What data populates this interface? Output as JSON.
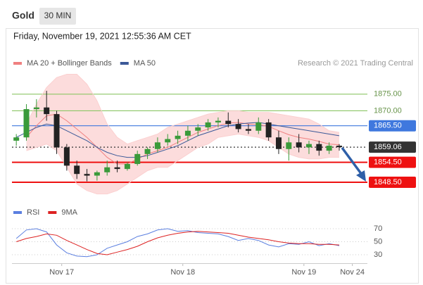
{
  "header": {
    "title": "Gold",
    "interval": "30 MIN"
  },
  "timestamp": "Friday, November 19, 2021 12:55:36 AM CET",
  "credit": "Research © 2021 Trading Central",
  "chart_data": [
    {
      "type": "candlestick",
      "xlim": [
        -0.5,
        35
      ],
      "ylim": [
        1843,
        1883
      ],
      "up_color": "#3a9a3a",
      "down_color": "#222222",
      "open": [
        1861,
        1862,
        1870.5,
        1871,
        1869,
        1859,
        1853.5,
        1851,
        1850.5,
        1851.5,
        1853,
        1852.5,
        1854,
        1857,
        1858.5,
        1860.5,
        1861.5,
        1862.5,
        1864,
        1865,
        1866.5,
        1867,
        1866,
        1864.5,
        1864,
        1866.5,
        1862,
        1858.5,
        1860.5,
        1859,
        1860,
        1858,
        1859.5
      ],
      "high": [
        1863,
        1872,
        1873.5,
        1876,
        1870,
        1860,
        1855,
        1852.5,
        1852,
        1855,
        1855,
        1854.5,
        1858,
        1859,
        1862,
        1863,
        1864,
        1865.5,
        1866,
        1867.5,
        1868,
        1869.5,
        1867.5,
        1866,
        1868,
        1867.5,
        1864,
        1862,
        1863,
        1861,
        1861,
        1860.5,
        1860
      ],
      "low": [
        1859.5,
        1861,
        1868,
        1867,
        1857,
        1852,
        1849.5,
        1848.8,
        1849,
        1850.5,
        1851.5,
        1852,
        1853.5,
        1855.5,
        1857.5,
        1859.5,
        1860,
        1861,
        1862.5,
        1864,
        1865,
        1865,
        1863.5,
        1863,
        1863,
        1861,
        1857,
        1855,
        1857.5,
        1857,
        1856.5,
        1857,
        1858
      ],
      "close": [
        1862,
        1870.5,
        1871,
        1869,
        1859,
        1853.5,
        1851,
        1850.5,
        1851.5,
        1853,
        1852.5,
        1854,
        1857,
        1858.5,
        1860.5,
        1861.5,
        1862.5,
        1864,
        1865,
        1866.5,
        1867,
        1866,
        1864.5,
        1864,
        1866.5,
        1862,
        1858.5,
        1860.5,
        1859,
        1860,
        1858,
        1859.5,
        1859.06
      ],
      "series": [
        {
          "name": "MA 20 + Bollinger Bands",
          "color": "#f08080",
          "band_color": "#fbd0d0",
          "values": [
            null,
            1862,
            1865.5,
            1868.5,
            1869,
            1867,
            1864.5,
            1862,
            1859,
            1856,
            1854,
            1854,
            1855.5,
            1857,
            1858,
            1859,
            1860.5,
            1862,
            1863.5,
            1864.5,
            1865.5,
            1866.3,
            1866.5,
            1866,
            1865.8,
            1865.3,
            1864,
            1862.8,
            1862,
            1861.5,
            1860.8,
            1860,
            1859.8
          ],
          "upper": [
            null,
            1866,
            1872,
            1877,
            1880,
            1881,
            1881,
            1878,
            1873,
            1866,
            1862,
            1860,
            1861,
            1862,
            1863,
            1865,
            1866,
            1867,
            1868,
            1869,
            1869.5,
            1870,
            1870,
            1869.5,
            1869.5,
            1869.5,
            1869,
            1868.5,
            1868,
            1867.5,
            1866,
            1864,
            1863.5
          ],
          "lower": [
            null,
            1858,
            1859,
            1860,
            1858,
            1853,
            1848,
            1846,
            1845,
            1845,
            1846,
            1848,
            1850,
            1852,
            1853,
            1853,
            1855,
            1857,
            1859,
            1860,
            1862,
            1862.5,
            1863,
            1862.5,
            1862,
            1861,
            1859,
            1857,
            1856,
            1855.5,
            1855.5,
            1856,
            1856
          ]
        },
        {
          "name": "MA 50",
          "color": "#3b5998",
          "values": [
            1862,
            1863.5,
            1865,
            1866,
            1865.5,
            1864,
            1862.5,
            1861,
            1859,
            1857.5,
            1856.5,
            1856,
            1856,
            1856.5,
            1857.5,
            1858.5,
            1859.5,
            1861,
            1862.5,
            1863.5,
            1864.5,
            1865.5,
            1866,
            1866.3,
            1866.5,
            1866,
            1865.5,
            1865,
            1864.5,
            1864,
            1863.5,
            1863,
            1862.5
          ]
        }
      ],
      "levels": [
        {
          "value": 1875,
          "label": "1875.00",
          "color": "#8cc665",
          "boxed": false,
          "dashed": false
        },
        {
          "value": 1870,
          "label": "1870.00",
          "color": "#8cc665",
          "boxed": false,
          "dashed": false
        },
        {
          "value": 1865.5,
          "label": "1865.50",
          "color": "#3f78de",
          "boxed": true,
          "dashed": false
        },
        {
          "value": 1859.06,
          "color": "#333333",
          "boxed": true,
          "dashed": true
        },
        {
          "value": 1854.5,
          "label": "1854.50",
          "color": "#ee1111",
          "boxed": true,
          "dashed": false
        },
        {
          "value": 1848.5,
          "label": "1848.50",
          "color": "#ee1111",
          "boxed": true,
          "dashed": false
        }
      ]
    },
    {
      "type": "line",
      "xlim": [
        -0.5,
        35
      ],
      "ylim": [
        20,
        85
      ],
      "yticks": [
        70,
        50,
        30
      ],
      "xticks": [
        {
          "value": 4.5,
          "label": "Nov 17"
        },
        {
          "value": 16.5,
          "label": "Nov 18"
        },
        {
          "value": 28.5,
          "label": "Nov 19"
        },
        {
          "value": 33.3,
          "label": "Nov 24"
        }
      ],
      "series": [
        {
          "name": "RSI",
          "color": "#5b7fe0",
          "values": [
            55,
            68,
            70,
            65,
            45,
            33,
            28,
            27,
            30,
            40,
            45,
            50,
            58,
            62,
            68,
            70,
            66,
            67,
            64,
            63,
            62,
            58,
            52,
            55,
            52,
            45,
            42,
            47,
            46,
            50,
            44,
            47,
            44
          ]
        },
        {
          "name": "9MA",
          "color": "#dd2222",
          "values": [
            50,
            55,
            58,
            62,
            60,
            52,
            45,
            38,
            32,
            30,
            34,
            38,
            43,
            50,
            56,
            60,
            63,
            65,
            66,
            65,
            64,
            63,
            60,
            57,
            55,
            53,
            50,
            48,
            47,
            47,
            46,
            46,
            45
          ]
        }
      ]
    }
  ]
}
